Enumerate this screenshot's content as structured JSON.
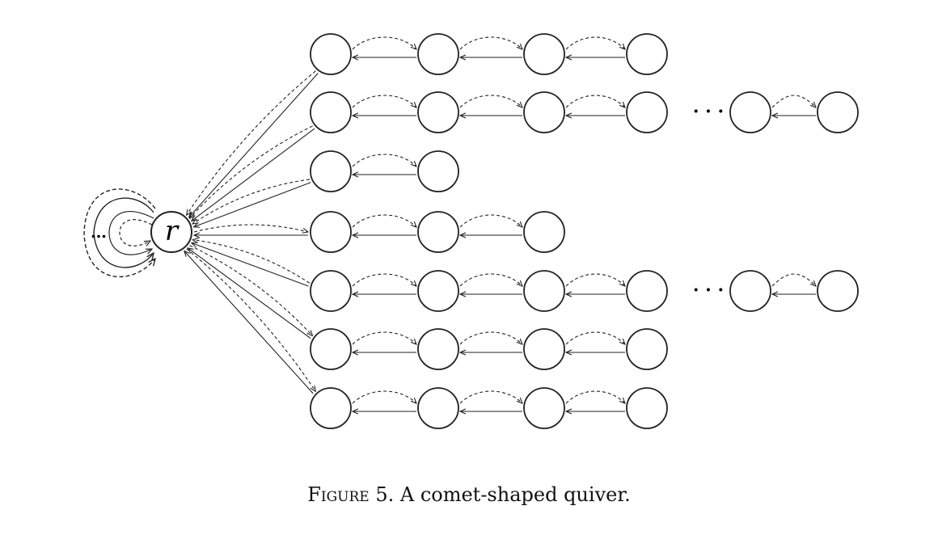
{
  "diagram": {
    "root_label": "r",
    "ellipsis": "…",
    "dots": "· · ·",
    "chains": [
      {
        "nodes": 4,
        "extra_nodes": 0
      },
      {
        "nodes": 4,
        "extra_nodes": 2
      },
      {
        "nodes": 2,
        "extra_nodes": 0
      },
      {
        "nodes": 3,
        "extra_nodes": 0
      },
      {
        "nodes": 4,
        "extra_nodes": 2
      },
      {
        "nodes": 4,
        "extra_nodes": 0
      },
      {
        "nodes": 4,
        "extra_nodes": 0
      }
    ],
    "root_arrows": [
      "solid-in",
      "dashed-in",
      "solid-in",
      "dashed-out",
      "solid-in",
      "dashed-out",
      "dashed-out"
    ],
    "chain_arrows": {
      "forward": "dashed",
      "backward": "solid"
    }
  },
  "caption": {
    "label": "Figure 5.",
    "text": "A comet-shaped quiver."
  }
}
